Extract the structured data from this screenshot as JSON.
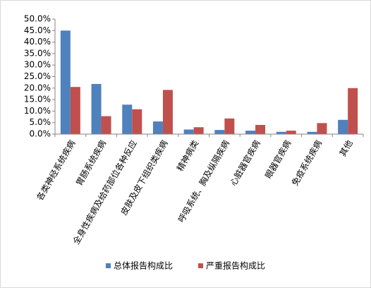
{
  "chart_data": {
    "type": "bar",
    "categories": [
      "各类神经系统疾病",
      "胃肠系统疾病",
      "全身性疾病及给药部位各种反应",
      "皮肤及皮下组织类疾病",
      "精神病类",
      "呼吸系统、胸及纵隔疾病",
      "心脏器官疾病",
      "眼器官疾病",
      "免疫系统疾病",
      "其他"
    ],
    "series": [
      {
        "name": "总体报告构成比",
        "color": "#4f81bd",
        "values": [
          45.0,
          21.8,
          12.8,
          5.5,
          2.0,
          1.8,
          1.5,
          1.0,
          1.0,
          6.2
        ]
      },
      {
        "name": "严重报告构成比",
        "color": "#c0504d",
        "values": [
          20.5,
          7.8,
          10.8,
          19.2,
          3.0,
          6.8,
          4.0,
          1.5,
          4.8,
          20.0
        ]
      }
    ],
    "ylim": [
      0,
      50
    ],
    "yticks": [
      {
        "value": 0,
        "label": "0.0%"
      },
      {
        "value": 5,
        "label": "5.0%"
      },
      {
        "value": 10,
        "label": "10.0%"
      },
      {
        "value": 15,
        "label": "15.0%"
      },
      {
        "value": 20,
        "label": "20.0%"
      },
      {
        "value": 25,
        "label": "25.0%"
      },
      {
        "value": 30,
        "label": "30.0%"
      },
      {
        "value": 35,
        "label": "35.0%"
      },
      {
        "value": 40,
        "label": "40.0%"
      },
      {
        "value": 45,
        "label": "45.0%"
      },
      {
        "value": 50,
        "label": "50.0%"
      }
    ],
    "grid": false,
    "legend": "bottom"
  }
}
